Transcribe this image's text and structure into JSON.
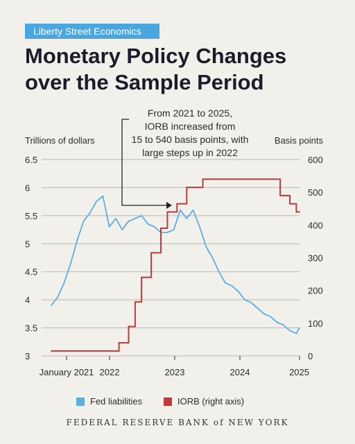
{
  "badge": "Liberty Street Economics",
  "title_line1": "Monetary Policy Changes",
  "title_line2": "over the Sample Period",
  "footer": "FEDERAL RESERVE BANK of NEW YORK",
  "colors": {
    "fed": "#5aaee0",
    "iorb": "#c0393b",
    "badge": "#4aa6dc",
    "grid": "#b8b8b8"
  },
  "chart_data": {
    "type": "line",
    "title": "Monetary Policy Changes over the Sample Period",
    "left_axis_label": "Trillions of dollars",
    "right_axis_label": "Basis points",
    "left_ylim": [
      3,
      6.5
    ],
    "right_ylim": [
      0,
      600
    ],
    "left_ticks": [
      "6.5",
      "6",
      "5.5",
      "5",
      "4.5",
      "4",
      "3.5",
      "3"
    ],
    "right_ticks": [
      "600",
      "500",
      "400",
      "300",
      "200",
      "100",
      "0"
    ],
    "x_ticks": [
      "January 2021",
      "2022",
      "2023",
      "2024",
      "2025"
    ],
    "xlim": [
      2021.0,
      2025.0
    ],
    "grid": true,
    "legend_position": "bottom",
    "annotation": [
      "From 2021 to 2025,",
      "IORB increased from",
      "15 to 540 basis points, with",
      "large steps up in 2022"
    ],
    "series": [
      {
        "name": "Fed liabilities",
        "axis": "left",
        "x": [
          2021.15,
          2021.25,
          2021.35,
          2021.45,
          2021.55,
          2021.65,
          2021.75,
          2021.85,
          2021.95,
          2022.05,
          2022.15,
          2022.25,
          2022.35,
          2022.45,
          2022.55,
          2022.65,
          2022.75,
          2022.85,
          2022.95,
          2023.05,
          2023.15,
          2023.25,
          2023.35,
          2023.45,
          2023.55,
          2023.65,
          2023.75,
          2023.85,
          2023.95,
          2024.05,
          2024.15,
          2024.25,
          2024.35,
          2024.45,
          2024.55,
          2024.65,
          2024.75,
          2024.85,
          2024.95,
          2025.0
        ],
        "values": [
          3.9,
          4.05,
          4.3,
          4.65,
          5.05,
          5.4,
          5.55,
          5.75,
          5.85,
          5.3,
          5.45,
          5.25,
          5.4,
          5.45,
          5.5,
          5.35,
          5.3,
          5.2,
          5.2,
          5.25,
          5.6,
          5.45,
          5.6,
          5.3,
          4.95,
          4.75,
          4.5,
          4.3,
          4.25,
          4.15,
          4.0,
          3.95,
          3.85,
          3.75,
          3.7,
          3.6,
          3.55,
          3.45,
          3.4,
          3.5
        ]
      },
      {
        "name": "IORB (right axis)",
        "axis": "right",
        "x": [
          2021.15,
          2021.4,
          2022.2,
          2022.35,
          2022.45,
          2022.55,
          2022.7,
          2022.85,
          2022.95,
          2023.1,
          2023.25,
          2023.5,
          2024.7,
          2024.85,
          2024.95,
          2025.0
        ],
        "values": [
          15,
          15,
          40,
          90,
          165,
          240,
          315,
          390,
          440,
          465,
          515,
          540,
          490,
          465,
          440,
          440
        ]
      }
    ]
  }
}
